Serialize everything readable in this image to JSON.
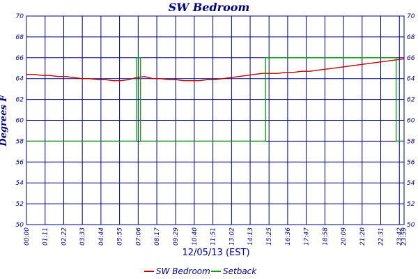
{
  "chart_data": {
    "type": "line",
    "title": "SW Bedroom",
    "xlabel": "12/05/13 (EST)",
    "ylabel": "Degrees F",
    "ylim": [
      50,
      70
    ],
    "yticks": [
      "50",
      "52",
      "54",
      "56",
      "58",
      "60",
      "62",
      "64",
      "66",
      "68",
      "70"
    ],
    "xtick_labels": [
      "00:00",
      "01:11",
      "02:22",
      "03:33",
      "04:44",
      "05:55",
      "07:06",
      "08:17",
      "09:29",
      "10:40",
      "11:51",
      "13:02",
      "14:13",
      "15:25",
      "16:36",
      "17:47",
      "18:58",
      "20:09",
      "21:20",
      "22:31",
      "23:42",
      "23:59"
    ],
    "xtick_hours": [
      0,
      1.1833,
      2.3667,
      3.55,
      4.7333,
      5.9167,
      7.1,
      8.2833,
      9.4833,
      10.6667,
      11.85,
      13.0333,
      14.2167,
      15.4167,
      16.6,
      17.7833,
      18.9667,
      20.15,
      21.3333,
      22.5167,
      23.7,
      23.9833
    ],
    "grid": true,
    "legend_position": "bottom",
    "colors": {
      "series1": "#c00000",
      "series2": "#00a000",
      "grid": "#000080",
      "text": "#000080"
    },
    "series": [
      {
        "name": "SW Bedroom",
        "x": [
          0,
          0.5,
          1,
          1.5,
          2,
          2.5,
          3,
          3.5,
          4,
          4.5,
          5,
          5.5,
          6,
          6.5,
          7,
          7.5,
          8,
          8.5,
          9,
          9.5,
          10,
          10.5,
          11,
          11.5,
          12,
          12.5,
          13,
          13.5,
          14,
          14.5,
          15,
          15.5,
          16,
          16.5,
          17,
          17.5,
          18,
          18.5,
          19,
          19.5,
          20,
          20.5,
          21,
          21.5,
          22,
          22.5,
          23,
          23.5,
          24
        ],
        "values": [
          64.4,
          64.4,
          64.3,
          64.3,
          64.2,
          64.2,
          64.1,
          64.0,
          64.0,
          63.9,
          63.9,
          63.8,
          63.8,
          63.9,
          64.1,
          64.2,
          64.0,
          64.0,
          63.9,
          63.9,
          63.8,
          63.8,
          63.8,
          63.9,
          63.9,
          64.0,
          64.1,
          64.2,
          64.3,
          64.4,
          64.5,
          64.5,
          64.5,
          64.6,
          64.6,
          64.7,
          64.7,
          64.8,
          64.9,
          65.0,
          65.1,
          65.2,
          65.3,
          65.4,
          65.5,
          65.6,
          65.7,
          65.8,
          65.9
        ]
      },
      {
        "name": "Setback",
        "x": [
          0,
          7.0,
          7.0,
          7.25,
          7.25,
          15.2,
          15.2,
          23.5,
          23.5,
          24
        ],
        "values": [
          58,
          58,
          66,
          66,
          58,
          58,
          66,
          66,
          58,
          58
        ]
      }
    ]
  }
}
